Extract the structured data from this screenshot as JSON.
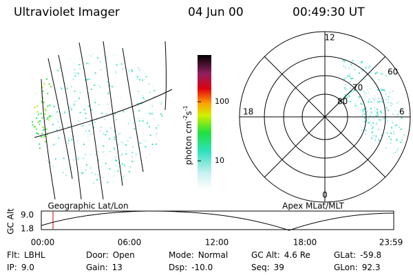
{
  "header": {
    "title": "Ultraviolet Imager",
    "date": "04 Jun 00",
    "time": "00:49:30 UT"
  },
  "left_image": {
    "label": "Geographic Lat/Lon"
  },
  "colorbar": {
    "label": [
      "photon cm",
      "-2",
      "s",
      "-1"
    ],
    "ticks": [
      "100",
      "10"
    ]
  },
  "polar_plot": {
    "label": "Apex MLat/MLT",
    "mlt_labels": [
      "12",
      "18",
      "6",
      "0"
    ],
    "lat_labels": [
      "60",
      "70",
      "80"
    ]
  },
  "altitude_plot": {
    "ylabel": "GC Alt",
    "yticks": [
      "9.0",
      "1.8"
    ],
    "xticks": [
      "00:00",
      "06:00",
      "12:00",
      "18:00",
      "23:59"
    ]
  },
  "footer": {
    "rows": [
      [
        [
          "Flt:",
          "LBHL"
        ],
        [
          "Door:",
          "Open"
        ],
        [
          "Mode:",
          "Normal"
        ],
        [
          "GC Alt:",
          "4.6 Re"
        ],
        [
          "GLat:",
          "-59.8"
        ]
      ],
      [
        [
          "IP:",
          "9.0"
        ],
        [
          "Gain:",
          "13"
        ],
        [
          "Dsp:",
          "-10.0"
        ],
        [
          "Seq:",
          "39"
        ],
        [
          "GLon:",
          "92.3"
        ]
      ]
    ]
  }
}
